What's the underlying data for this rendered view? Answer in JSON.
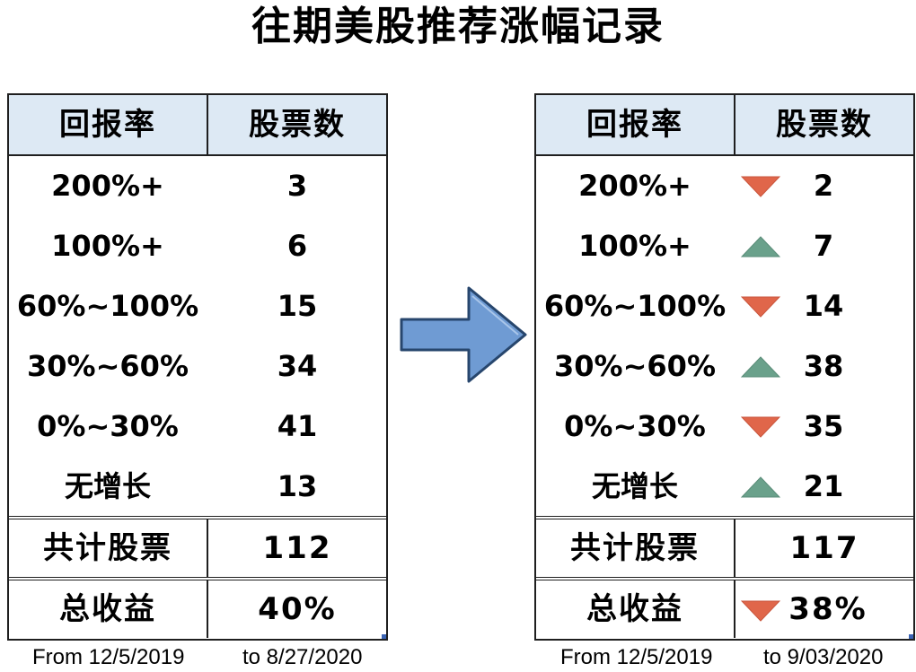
{
  "title": "往期美股推荐涨幅记录",
  "colors": {
    "header_bg": "#dde9f4",
    "down": "#e0664a",
    "up": "#6aa18b",
    "arrow": "#6f9bd3"
  },
  "left_table": {
    "headers": [
      "回报率",
      "股票数"
    ],
    "rows": [
      {
        "range": "200%+",
        "count": "3"
      },
      {
        "range": "100%+",
        "count": "6"
      },
      {
        "range": "60%~100%",
        "count": "15"
      },
      {
        "range": "30%~60%",
        "count": "34"
      },
      {
        "range": "0%~30%",
        "count": "41"
      },
      {
        "range": "无增长",
        "count": "13"
      }
    ],
    "total_label": "共计股票",
    "total_value": "112",
    "return_label": "总收益",
    "return_value": "40%",
    "date_from": "From 12/5/2019",
    "date_to": "to 8/27/2020"
  },
  "right_table": {
    "headers": [
      "回报率",
      "股票数"
    ],
    "rows": [
      {
        "range": "200%+",
        "count": "2",
        "trend": "down"
      },
      {
        "range": "100%+",
        "count": "7",
        "trend": "up"
      },
      {
        "range": "60%~100%",
        "count": "14",
        "trend": "down"
      },
      {
        "range": "30%~60%",
        "count": "38",
        "trend": "up"
      },
      {
        "range": "0%~30%",
        "count": "35",
        "trend": "down"
      },
      {
        "range": "无增长",
        "count": "21",
        "trend": "up"
      }
    ],
    "total_label": "共计股票",
    "total_value": "117",
    "return_label": "总收益",
    "return_value": "38%",
    "return_trend": "down",
    "date_from": "From 12/5/2019",
    "date_to": "to 9/03/2020"
  }
}
